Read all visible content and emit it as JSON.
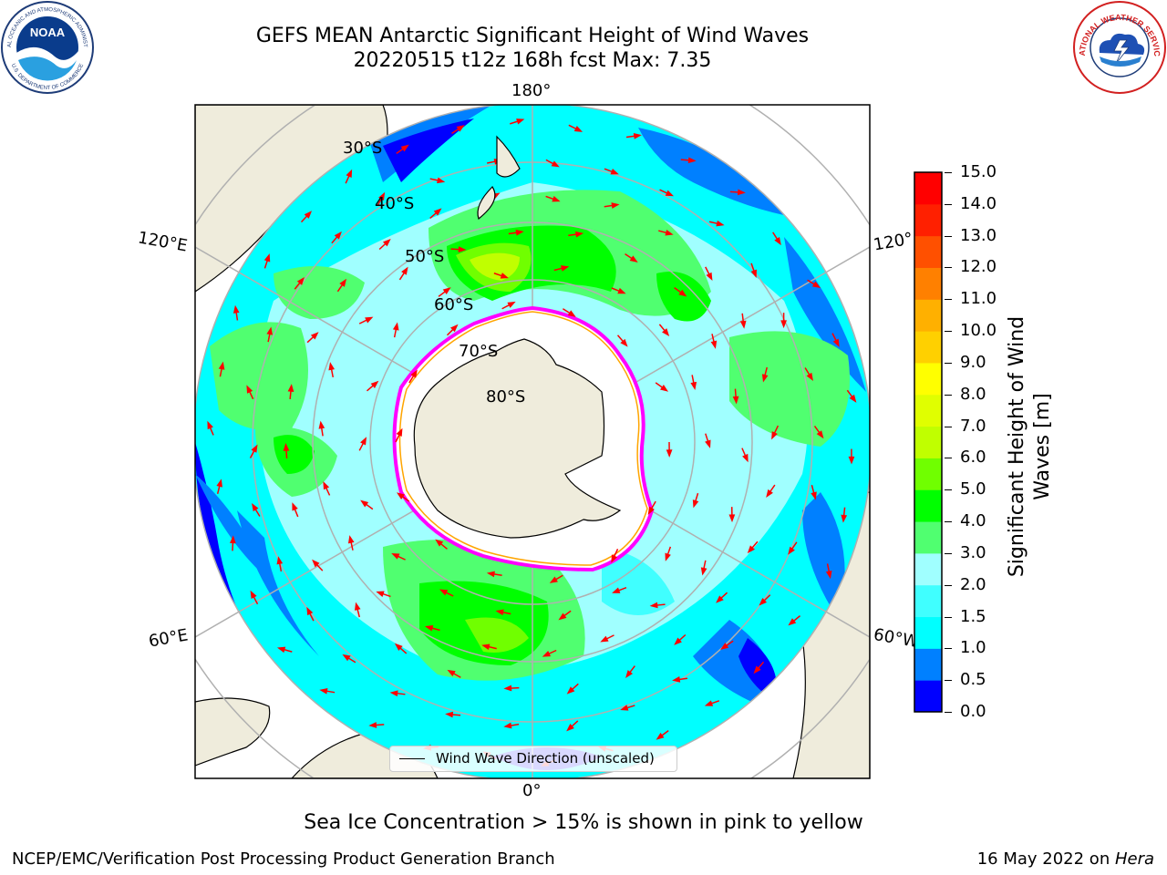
{
  "title": {
    "line1": "GEFS MEAN Antarctic Significant Height of Wind Waves",
    "line2": "20220515 t12z 168h fcst   Max: 7.35"
  },
  "logos": {
    "left": "noaa-logo",
    "right": "nws-logo",
    "noaa_text": "NOAA",
    "noaa_ring_top": "NATIONAL OCEANIC AND ATMOSPHERIC ADMINISTRATION",
    "noaa_ring_bottom": "U.S. DEPARTMENT OF COMMERCE",
    "nws_ring": "NATIONAL WEATHER SERVICE"
  },
  "map": {
    "projection": "south-polar-stereographic",
    "lon_labels": {
      "top": "180°",
      "bottom": "0°",
      "upper_left": "120°E",
      "upper_right": "120°",
      "lower_left": "60°E",
      "lower_right": "60°W"
    },
    "lat_labels": [
      "30°S",
      "40°S",
      "50°S",
      "60°S",
      "70°S",
      "80°S"
    ],
    "legend": "Wind Wave Direction (unscaled)",
    "arrow_color": "#ff0000",
    "land_color": "#efecdc",
    "ice_edge_colors": [
      "#ff00ff",
      "#ffa500",
      "#ffff00"
    ]
  },
  "colorbar": {
    "label": "Significant Height of Wind Waves [m]",
    "label_line1": "Significant Height of Wind",
    "label_line2": "Waves [m]",
    "ticks": [
      "0.0",
      "0.5",
      "1.0",
      "1.5",
      "2.0",
      "3.0",
      "4.0",
      "5.0",
      "6.0",
      "7.0",
      "8.0",
      "9.0",
      "10.0",
      "11.0",
      "12.0",
      "13.0",
      "14.0",
      "15.0"
    ],
    "colors": [
      "#0000ff",
      "#0080ff",
      "#00ffff",
      "#40ffff",
      "#a0ffff",
      "#50ff70",
      "#00ff00",
      "#70ff00",
      "#c0ff00",
      "#e0ff00",
      "#ffff00",
      "#ffd000",
      "#ffb000",
      "#ff8000",
      "#ff5000",
      "#ff2000",
      "#ff0000"
    ]
  },
  "caption": "Sea Ice Concentration > 15% is shown in pink to yellow",
  "footer": {
    "left": "NCEP/EMC/Verification Post Processing Product Generation Branch",
    "right_date": "16 May 2022 on ",
    "right_host": "Hera"
  }
}
